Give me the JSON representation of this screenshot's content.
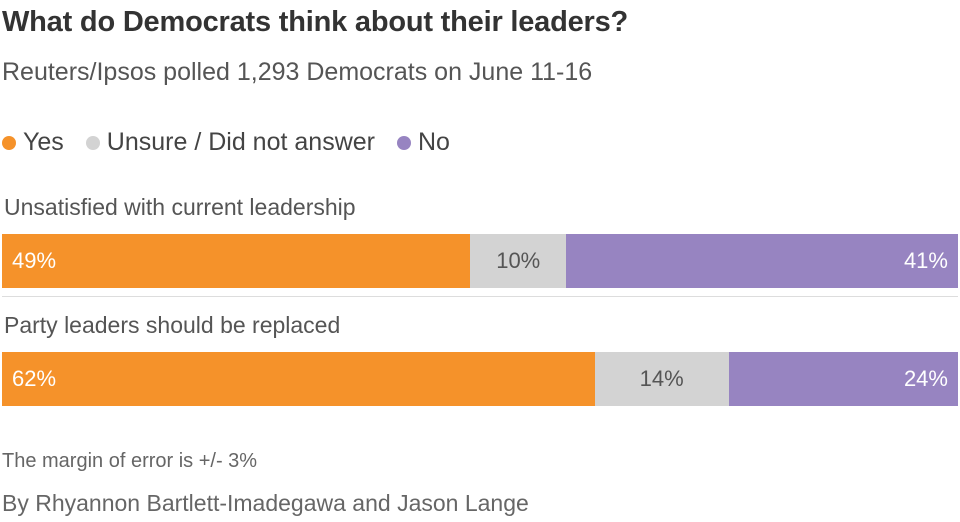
{
  "title": "What do Democrats think about their leaders?",
  "subtitle": "Reuters/Ipsos polled 1,293 Democrats on June 11-16",
  "legend": [
    {
      "label": "Yes",
      "color": "#f5922a"
    },
    {
      "label": "Unsure / Did not answer",
      "color": "#d3d3d3"
    },
    {
      "label": "No",
      "color": "#9784c1"
    }
  ],
  "chart_data": {
    "type": "bar",
    "orientation": "horizontal-stacked-100",
    "title": "What do Democrats think about their leaders?",
    "categories": [
      "Unsatisfied with current leadership",
      "Party leaders should be replaced"
    ],
    "series": [
      {
        "name": "Yes",
        "values": [
          49,
          62
        ],
        "labels": [
          "49%",
          "62%"
        ],
        "color": "#f5922a"
      },
      {
        "name": "Unsure / Did not answer",
        "values": [
          10,
          14
        ],
        "labels": [
          "10%",
          "14%"
        ],
        "color": "#d3d3d3"
      },
      {
        "name": "No",
        "values": [
          41,
          24
        ],
        "labels": [
          "41%",
          "24%"
        ],
        "color": "#9784c1"
      }
    ],
    "xlim": [
      0,
      100
    ],
    "legend_position": "top-left",
    "grid": false
  },
  "note": "The margin of error is +/- 3%",
  "byline": "By Rhyannon Bartlett-Imadegawa and Jason Lange"
}
